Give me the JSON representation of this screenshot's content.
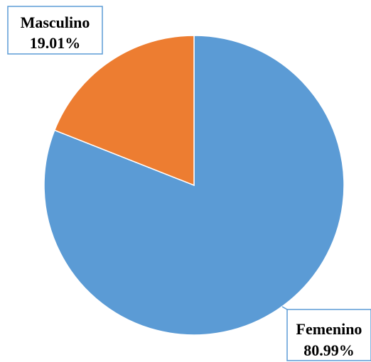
{
  "chart_data": {
    "type": "pie",
    "title": "",
    "start_angle_deg": 0,
    "direction": "counterclockwise",
    "slices": [
      {
        "label": "Femenino",
        "value": 80.99,
        "value_label": "80.99%",
        "color": "#5B9BD5"
      },
      {
        "label": "Masculino",
        "value": 19.01,
        "value_label": "19.01%",
        "color": "#ED7D31"
      }
    ],
    "legend": "none",
    "data_labels": "callouts"
  }
}
